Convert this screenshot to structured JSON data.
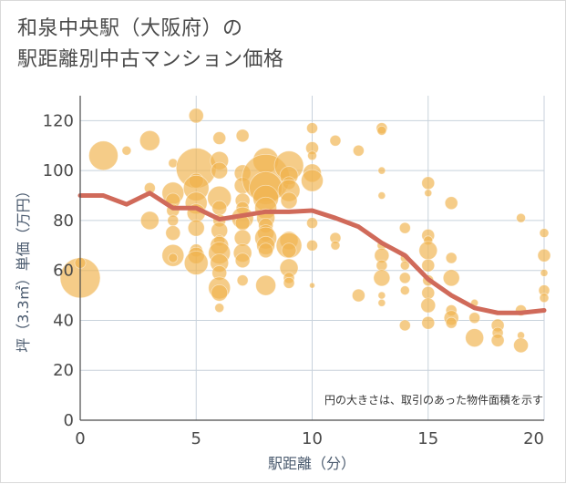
{
  "title": {
    "line1": "和泉中央駅（大阪府）の",
    "line2": "駅距離別中古マンション価格"
  },
  "chart_data": {
    "type": "scatter",
    "xlabel": "駅距離（分）",
    "ylabel": "坪（3.3㎡）単価（万円）",
    "xlim": [
      0,
      20
    ],
    "ylim": [
      0,
      130
    ],
    "xticks": [
      "0",
      "5",
      "10",
      "15",
      "20"
    ],
    "yticks": [
      "0",
      "20",
      "40",
      "60",
      "80",
      "100",
      "120"
    ],
    "xtick_values": [
      0,
      5,
      10,
      15,
      20
    ],
    "ytick_values": [
      0,
      20,
      40,
      60,
      80,
      100,
      120
    ],
    "grid": true,
    "annotation": "円の大きさは、取引のあった物件面積を示す",
    "colors": {
      "bubble": "#f0b450",
      "trend": "#d06a5a",
      "grid": "#c8d2dc",
      "axis": "#4a4a4a"
    },
    "bubbles": [
      {
        "x": 0,
        "y": 57,
        "s": 22
      },
      {
        "x": 0,
        "y": 63,
        "s": 6
      },
      {
        "x": 1,
        "y": 106,
        "s": 16
      },
      {
        "x": 2,
        "y": 108,
        "s": 5
      },
      {
        "x": 3,
        "y": 112,
        "s": 11
      },
      {
        "x": 3,
        "y": 93,
        "s": 6
      },
      {
        "x": 3,
        "y": 80,
        "s": 10
      },
      {
        "x": 4,
        "y": 103,
        "s": 5
      },
      {
        "x": 4,
        "y": 91,
        "s": 12
      },
      {
        "x": 4,
        "y": 88,
        "s": 8
      },
      {
        "x": 4,
        "y": 84,
        "s": 7
      },
      {
        "x": 4,
        "y": 80,
        "s": 6
      },
      {
        "x": 4,
        "y": 75,
        "s": 8
      },
      {
        "x": 4,
        "y": 66,
        "s": 12
      },
      {
        "x": 4,
        "y": 65,
        "s": 5
      },
      {
        "x": 5,
        "y": 122,
        "s": 8
      },
      {
        "x": 5,
        "y": 101,
        "s": 22
      },
      {
        "x": 5,
        "y": 96,
        "s": 8
      },
      {
        "x": 5,
        "y": 93,
        "s": 14
      },
      {
        "x": 5,
        "y": 87,
        "s": 12
      },
      {
        "x": 5,
        "y": 83,
        "s": 10
      },
      {
        "x": 5,
        "y": 77,
        "s": 9
      },
      {
        "x": 5,
        "y": 68,
        "s": 7
      },
      {
        "x": 5,
        "y": 66,
        "s": 9
      },
      {
        "x": 5,
        "y": 63,
        "s": 13
      },
      {
        "x": 6,
        "y": 113,
        "s": 7
      },
      {
        "x": 6,
        "y": 104,
        "s": 10
      },
      {
        "x": 6,
        "y": 100,
        "s": 9
      },
      {
        "x": 6,
        "y": 89,
        "s": 13
      },
      {
        "x": 6,
        "y": 85,
        "s": 8
      },
      {
        "x": 6,
        "y": 80,
        "s": 7
      },
      {
        "x": 6,
        "y": 76,
        "s": 9
      },
      {
        "x": 6,
        "y": 72,
        "s": 6
      },
      {
        "x": 6,
        "y": 70,
        "s": 10
      },
      {
        "x": 6,
        "y": 67,
        "s": 12
      },
      {
        "x": 6,
        "y": 63,
        "s": 10
      },
      {
        "x": 6,
        "y": 59,
        "s": 8
      },
      {
        "x": 6,
        "y": 53,
        "s": 12
      },
      {
        "x": 6,
        "y": 51,
        "s": 9
      },
      {
        "x": 6,
        "y": 45,
        "s": 5
      },
      {
        "x": 7,
        "y": 114,
        "s": 7
      },
      {
        "x": 7,
        "y": 99,
        "s": 9
      },
      {
        "x": 7,
        "y": 94,
        "s": 9
      },
      {
        "x": 7,
        "y": 88,
        "s": 8
      },
      {
        "x": 7,
        "y": 85,
        "s": 7
      },
      {
        "x": 7,
        "y": 81,
        "s": 12
      },
      {
        "x": 7,
        "y": 79,
        "s": 8
      },
      {
        "x": 7,
        "y": 73,
        "s": 9
      },
      {
        "x": 7,
        "y": 67,
        "s": 10
      },
      {
        "x": 7,
        "y": 64,
        "s": 8
      },
      {
        "x": 7,
        "y": 56,
        "s": 6
      },
      {
        "x": 8,
        "y": 104,
        "s": 14
      },
      {
        "x": 8,
        "y": 97,
        "s": 26
      },
      {
        "x": 8,
        "y": 93,
        "s": 18
      },
      {
        "x": 8,
        "y": 89,
        "s": 14
      },
      {
        "x": 8,
        "y": 85,
        "s": 12
      },
      {
        "x": 8,
        "y": 81,
        "s": 10
      },
      {
        "x": 8,
        "y": 78,
        "s": 8
      },
      {
        "x": 8,
        "y": 75,
        "s": 9
      },
      {
        "x": 8,
        "y": 73,
        "s": 12
      },
      {
        "x": 8,
        "y": 70,
        "s": 10
      },
      {
        "x": 8,
        "y": 68,
        "s": 8
      },
      {
        "x": 8,
        "y": 54,
        "s": 11
      },
      {
        "x": 9,
        "y": 102,
        "s": 16
      },
      {
        "x": 9,
        "y": 98,
        "s": 10
      },
      {
        "x": 9,
        "y": 95,
        "s": 7
      },
      {
        "x": 9,
        "y": 92,
        "s": 12
      },
      {
        "x": 9,
        "y": 88,
        "s": 9
      },
      {
        "x": 9,
        "y": 72,
        "s": 10
      },
      {
        "x": 9,
        "y": 70,
        "s": 14
      },
      {
        "x": 9,
        "y": 68,
        "s": 8
      },
      {
        "x": 9,
        "y": 61,
        "s": 10
      },
      {
        "x": 9,
        "y": 57,
        "s": 6
      },
      {
        "x": 9,
        "y": 55,
        "s": 6
      },
      {
        "x": 10,
        "y": 117,
        "s": 6
      },
      {
        "x": 10,
        "y": 109,
        "s": 7
      },
      {
        "x": 10,
        "y": 106,
        "s": 5
      },
      {
        "x": 10,
        "y": 99,
        "s": 10
      },
      {
        "x": 10,
        "y": 96,
        "s": 12
      },
      {
        "x": 10,
        "y": 79,
        "s": 6
      },
      {
        "x": 10,
        "y": 70,
        "s": 6
      },
      {
        "x": 10,
        "y": 54,
        "s": 3
      },
      {
        "x": 11,
        "y": 112,
        "s": 6
      },
      {
        "x": 11,
        "y": 73,
        "s": 6
      },
      {
        "x": 11,
        "y": 70,
        "s": 5
      },
      {
        "x": 12,
        "y": 108,
        "s": 6
      },
      {
        "x": 12,
        "y": 50,
        "s": 7
      },
      {
        "x": 13,
        "y": 117,
        "s": 6
      },
      {
        "x": 13,
        "y": 116,
        "s": 5
      },
      {
        "x": 13,
        "y": 100,
        "s": 4
      },
      {
        "x": 13,
        "y": 90,
        "s": 4
      },
      {
        "x": 13,
        "y": 70,
        "s": 5
      },
      {
        "x": 13,
        "y": 66,
        "s": 8
      },
      {
        "x": 13,
        "y": 62,
        "s": 6
      },
      {
        "x": 13,
        "y": 57,
        "s": 9
      },
      {
        "x": 13,
        "y": 50,
        "s": 4
      },
      {
        "x": 13,
        "y": 47,
        "s": 4
      },
      {
        "x": 14,
        "y": 77,
        "s": 6
      },
      {
        "x": 14,
        "y": 65,
        "s": 5
      },
      {
        "x": 14,
        "y": 62,
        "s": 5
      },
      {
        "x": 14,
        "y": 57,
        "s": 6
      },
      {
        "x": 14,
        "y": 52,
        "s": 5
      },
      {
        "x": 14,
        "y": 38,
        "s": 6
      },
      {
        "x": 15,
        "y": 95,
        "s": 7
      },
      {
        "x": 15,
        "y": 91,
        "s": 4
      },
      {
        "x": 15,
        "y": 74,
        "s": 7
      },
      {
        "x": 15,
        "y": 72,
        "s": 5
      },
      {
        "x": 15,
        "y": 68,
        "s": 10
      },
      {
        "x": 15,
        "y": 62,
        "s": 7
      },
      {
        "x": 15,
        "y": 56,
        "s": 6
      },
      {
        "x": 15,
        "y": 51,
        "s": 7
      },
      {
        "x": 15,
        "y": 46,
        "s": 8
      },
      {
        "x": 15,
        "y": 39,
        "s": 7
      },
      {
        "x": 16,
        "y": 87,
        "s": 7
      },
      {
        "x": 16,
        "y": 65,
        "s": 6
      },
      {
        "x": 16,
        "y": 57,
        "s": 9
      },
      {
        "x": 16,
        "y": 44,
        "s": 6
      },
      {
        "x": 16,
        "y": 41,
        "s": 8
      },
      {
        "x": 16,
        "y": 39,
        "s": 6
      },
      {
        "x": 17,
        "y": 47,
        "s": 4
      },
      {
        "x": 17,
        "y": 41,
        "s": 6
      },
      {
        "x": 17,
        "y": 33,
        "s": 10
      },
      {
        "x": 18,
        "y": 38,
        "s": 7
      },
      {
        "x": 18,
        "y": 35,
        "s": 6
      },
      {
        "x": 18,
        "y": 32,
        "s": 7
      },
      {
        "x": 19,
        "y": 81,
        "s": 5
      },
      {
        "x": 19,
        "y": 44,
        "s": 6
      },
      {
        "x": 19,
        "y": 34,
        "s": 4
      },
      {
        "x": 19,
        "y": 30,
        "s": 8
      },
      {
        "x": 20,
        "y": 75,
        "s": 5
      },
      {
        "x": 20,
        "y": 66,
        "s": 7
      },
      {
        "x": 20,
        "y": 59,
        "s": 4
      },
      {
        "x": 20,
        "y": 52,
        "s": 6
      },
      {
        "x": 20,
        "y": 49,
        "s": 5
      }
    ],
    "trend": {
      "x": [
        0,
        1,
        2,
        3,
        4,
        5,
        6,
        7,
        8,
        9,
        10,
        11,
        12,
        13,
        14,
        15,
        16,
        17,
        18,
        19,
        20
      ],
      "y": [
        90,
        90,
        86.5,
        91,
        85,
        85,
        80.5,
        82,
        83.5,
        83.5,
        84,
        81,
        77.5,
        71,
        66,
        56.5,
        50,
        45,
        43,
        43,
        44
      ]
    }
  }
}
